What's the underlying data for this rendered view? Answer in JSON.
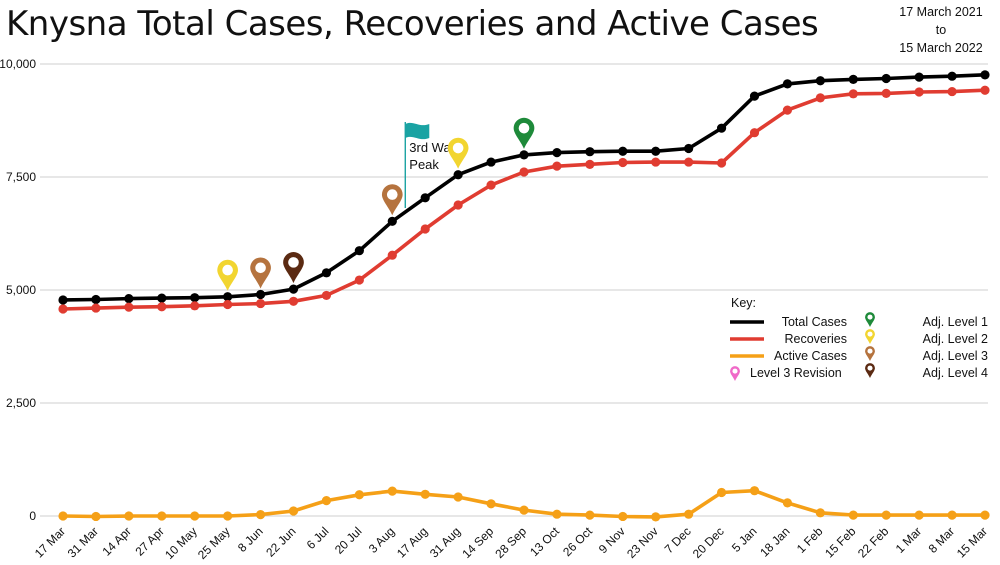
{
  "header": {
    "title": "Knysna Total Cases, Recoveries and Active Cases",
    "date_from": "17 March 2021",
    "date_to_word": "to",
    "date_to": "15 March 2022"
  },
  "chart_data": {
    "type": "line",
    "categories": [
      "17 Mar",
      "31 Mar",
      "14 Apr",
      "27 Apr",
      "10 May",
      "25 May",
      "8 Jun",
      "22 Jun",
      "6 Jul",
      "20 Jul",
      "3 Aug",
      "17 Aug",
      "31 Aug",
      "14 Sep",
      "28 Sep",
      "13 Oct",
      "26 Oct",
      "9 Nov",
      "23 Nov",
      "7 Dec",
      "20 Dec",
      "5 Jan",
      "18 Jan",
      "1 Feb",
      "15 Feb",
      "22 Feb",
      "1 Mar",
      "8 Mar",
      "15 Mar"
    ],
    "ylim": [
      0,
      10000
    ],
    "yticks": [
      0,
      2500,
      5000,
      7500,
      10000
    ],
    "ytick_labels": [
      "0",
      "2,500",
      "5,000",
      "7,500",
      "10,000"
    ],
    "grid": true,
    "series": [
      {
        "name": "Total Cases",
        "color": "#000000",
        "values": [
          4780,
          4790,
          4810,
          4820,
          4830,
          4850,
          4900,
          5020,
          5380,
          5870,
          6520,
          7040,
          7550,
          7830,
          7990,
          8040,
          8060,
          8070,
          8070,
          8130,
          8580,
          9290,
          9560,
          9630,
          9660,
          9680,
          9710,
          9730,
          9760
        ]
      },
      {
        "name": "Recoveries",
        "color": "#e03c31",
        "values": [
          4580,
          4600,
          4620,
          4630,
          4650,
          4680,
          4700,
          4750,
          4880,
          5220,
          5770,
          6350,
          6880,
          7320,
          7610,
          7740,
          7780,
          7820,
          7830,
          7830,
          7810,
          8480,
          8980,
          9250,
          9340,
          9350,
          9380,
          9390,
          9420
        ]
      },
      {
        "name": "Active Cases",
        "color": "#f5a017",
        "values": [
          0,
          -10,
          0,
          0,
          0,
          0,
          30,
          110,
          340,
          470,
          550,
          480,
          420,
          270,
          130,
          40,
          20,
          -10,
          -20,
          40,
          520,
          560,
          290,
          70,
          20,
          20,
          20,
          20,
          20
        ]
      }
    ],
    "annotations": [
      {
        "text_line1": "3rd Wave",
        "text_line2": "Peak",
        "x_category": "3 Aug",
        "color": "#1aa3a3",
        "icon": "flag-icon"
      }
    ],
    "markers": [
      {
        "level": "Adj. Level 2",
        "x_category": "25 May",
        "color": "#f2d530"
      },
      {
        "level": "Adj. Level 3",
        "x_category": "8 Jun",
        "color": "#b5733e"
      },
      {
        "level": "Adj. Level 4",
        "x_category": "22 Jun",
        "color": "#5b2a12"
      },
      {
        "level": "Adj. Level 3",
        "x_category": "3 Aug",
        "color": "#b5733e"
      },
      {
        "level": "Adj. Level 2",
        "x_category": "31 Aug",
        "color": "#f2d530"
      },
      {
        "level": "Adj. Level 1",
        "x_category": "28 Sep",
        "color": "#1e8a3a"
      }
    ],
    "legend": {
      "title": "Key:",
      "position": "right",
      "lines": [
        {
          "label": "Total Cases",
          "color": "#000000"
        },
        {
          "label": "Recoveries",
          "color": "#e03c31"
        },
        {
          "label": "Active Cases",
          "color": "#f5a017"
        }
      ],
      "pins": [
        {
          "label": "Level 3 Revision",
          "color": "#f06ac8"
        },
        {
          "label": "Adj. Level 1",
          "color": "#1e8a3a"
        },
        {
          "label": "Adj. Level 2",
          "color": "#f2d530"
        },
        {
          "label": "Adj. Level 3",
          "color": "#b5733e"
        },
        {
          "label": "Adj. Level 4",
          "color": "#5b2a12"
        }
      ]
    }
  }
}
